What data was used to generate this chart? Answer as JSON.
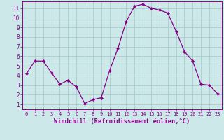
{
  "x": [
    0,
    1,
    2,
    3,
    4,
    5,
    6,
    7,
    8,
    9,
    10,
    11,
    12,
    13,
    14,
    15,
    16,
    17,
    18,
    19,
    20,
    21,
    22,
    23
  ],
  "y": [
    4.2,
    5.5,
    5.5,
    4.3,
    3.1,
    3.5,
    2.8,
    1.1,
    1.5,
    1.7,
    4.5,
    6.8,
    9.6,
    11.2,
    11.4,
    11.0,
    10.8,
    10.5,
    8.6,
    6.5,
    5.5,
    3.1,
    3.0,
    2.1
  ],
  "line_color": "#880088",
  "marker": "D",
  "marker_size": 2.2,
  "bg_color": "#cce8e8",
  "grid_color": "#aacccc",
  "xlabel": "Windchill (Refroidissement éolien,°C)",
  "xlabel_color": "#880088",
  "ylabel_ticks": [
    1,
    2,
    3,
    4,
    5,
    6,
    7,
    8,
    9,
    10,
    11
  ],
  "xlim": [
    -0.5,
    23.5
  ],
  "ylim": [
    0.5,
    11.7
  ],
  "tick_color": "#880088",
  "spine_color": "#880088",
  "xtick_fontsize": 5.0,
  "ytick_fontsize": 5.5,
  "xlabel_fontsize": 6.2
}
